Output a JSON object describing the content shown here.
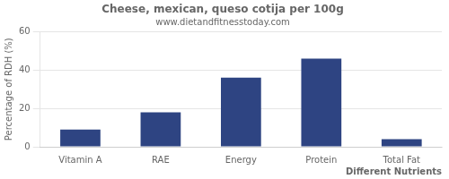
{
  "chart_data": {
    "type": "bar",
    "title": "Cheese, mexican, queso cotija per 100g",
    "subtitle": "www.dietandfitnesstoday.com",
    "xlabel": "Different Nutrients",
    "ylabel": "Percentage of RDH (%)",
    "categories": [
      "Vitamin A",
      "RAE",
      "Energy",
      "Protein",
      "Total Fat"
    ],
    "values": [
      9,
      18,
      36,
      46,
      4
    ],
    "color": "#2e4482",
    "ylim": [
      0,
      60
    ],
    "yticks": [
      0,
      20,
      40,
      60
    ],
    "grid": true
  }
}
